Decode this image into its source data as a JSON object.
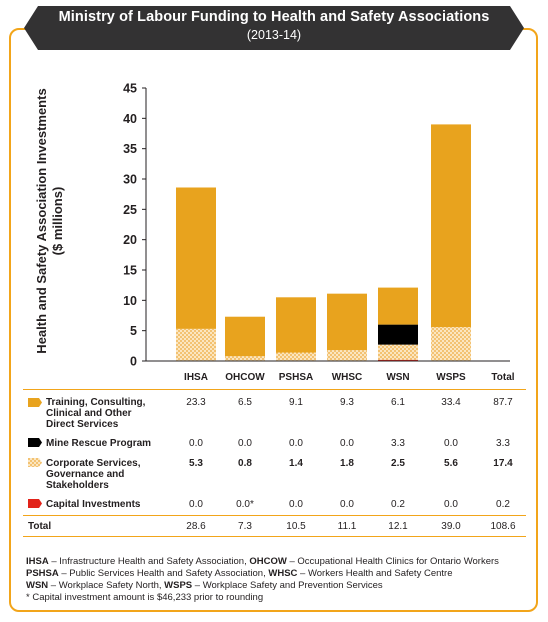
{
  "header": {
    "title": "Ministry of Labour Funding to Health and Safety Associations",
    "subtitle": "(2013-14)"
  },
  "chart_data": {
    "type": "bar",
    "stacked": true,
    "ylabel_line1": "Health and Safety Association Investments",
    "ylabel_line2": "($ millions)",
    "ylim": [
      0,
      45
    ],
    "yticks": [
      "0",
      "5",
      "10",
      "15",
      "20",
      "25",
      "30",
      "35",
      "40",
      "45"
    ],
    "categories": [
      "IHSA",
      "OHCOW",
      "PSHSA",
      "WHSC",
      "WSN",
      "WSPS"
    ],
    "total_label": "Total",
    "series": [
      {
        "name": "Capital Investments",
        "values": [
          0.0,
          0.0,
          0.0,
          0.0,
          0.2,
          0.0
        ],
        "color": "#e2231a"
      },
      {
        "name": "Corporate Services, Governance and Stakeholders",
        "values": [
          5.3,
          0.8,
          1.4,
          1.8,
          2.5,
          5.6
        ],
        "color": "#f5c06a"
      },
      {
        "name": "Mine Rescue Program",
        "values": [
          0.0,
          0.0,
          0.0,
          0.0,
          3.3,
          0.0
        ],
        "color": "#000000"
      },
      {
        "name": "Training, Consulting, Clinical and Other Direct Services",
        "values": [
          23.3,
          6.5,
          9.1,
          9.3,
          6.1,
          33.4
        ],
        "color": "#e8a31e"
      }
    ],
    "totals": [
      28.6,
      7.3,
      10.5,
      11.1,
      12.1,
      39.0
    ]
  },
  "table": {
    "rows": [
      {
        "label_lines": [
          "Training, Consulting,",
          "Clinical and Other",
          "Direct Services"
        ],
        "values": [
          "23.3",
          "6.5",
          "9.1",
          "9.3",
          "6.1",
          "33.4",
          "87.7"
        ]
      },
      {
        "label_lines": [
          "Mine Rescue Program"
        ],
        "values": [
          "0.0",
          "0.0",
          "0.0",
          "0.0",
          "3.3",
          "0.0",
          "3.3"
        ]
      },
      {
        "label_lines": [
          "Corporate Services,",
          "Governance and",
          "Stakeholders"
        ],
        "values": [
          "5.3",
          "0.8",
          "1.4",
          "1.8",
          "2.5",
          "5.6",
          "17.4"
        ]
      },
      {
        "label_lines": [
          "Capital Investments"
        ],
        "values": [
          "0.0",
          "0.0*",
          "0.0",
          "0.0",
          "0.2",
          "0.0",
          "0.2"
        ]
      }
    ],
    "total_row": {
      "label": "Total",
      "values": [
        "28.6",
        "7.3",
        "10.5",
        "11.1",
        "12.1",
        "39.0",
        "108.6"
      ]
    }
  },
  "notes": {
    "line1_abbr1": "IHSA",
    "line1_text1": " – Infrastructure Health and Safety Association, ",
    "line1_abbr2": "OHCOW",
    "line1_text2": " – Occupational Health Clinics for Ontario Workers",
    "line2_abbr1": "PSHSA",
    "line2_text1": " – Public Services Health and Safety Association, ",
    "line2_abbr2": "WHSC",
    "line2_text2": " – Workers Health and Safety Centre",
    "line3_abbr1": "WSN",
    "line3_text1": " – Workplace Safety North, ",
    "line3_abbr2": "WSPS",
    "line3_text2": " – Workplace Safety and Prevention Services",
    "line4": "* Capital investment amount is $46,233 prior to rounding"
  }
}
